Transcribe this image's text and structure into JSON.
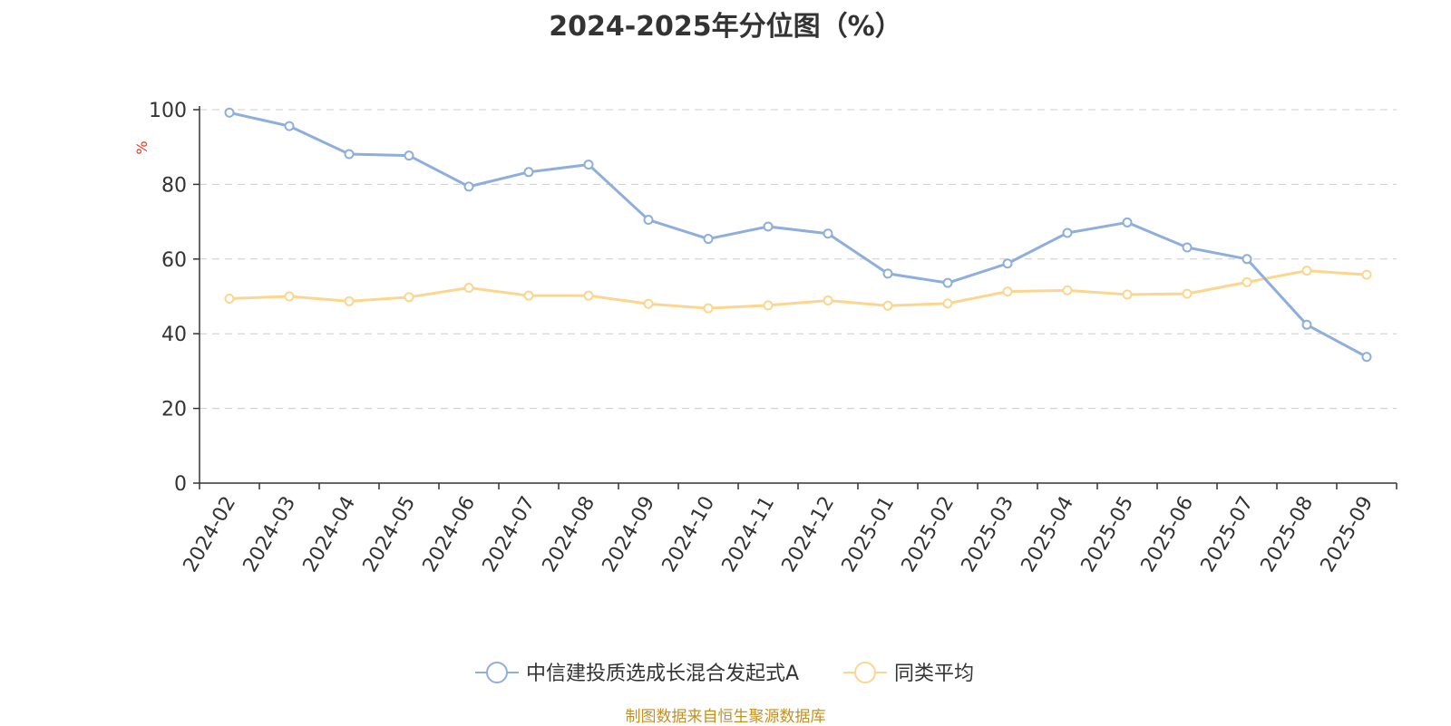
{
  "title": "2024-2025年分位图（%）",
  "source": "制图数据来自恒生聚源数据库",
  "colors": {
    "series1": "#8eaedb",
    "series2": "#fcd68e",
    "unit": "#e8341c",
    "source": "#c6901f"
  },
  "chart_data": {
    "type": "line",
    "title": "2024-2025年分位图（%）",
    "xlabel": "",
    "ylabel": "%",
    "ylim": [
      0,
      100
    ],
    "yticks": [
      0,
      20,
      40,
      60,
      80,
      100
    ],
    "grid": true,
    "legend_position": "bottom",
    "categories": [
      "2024-02",
      "2024-03",
      "2024-04",
      "2024-05",
      "2024-06",
      "2024-07",
      "2024-08",
      "2024-09",
      "2024-10",
      "2024-11",
      "2024-12",
      "2025-01",
      "2025-02",
      "2025-03",
      "2025-04",
      "2025-05",
      "2025-06",
      "2025-07",
      "2025-08",
      "2025-09"
    ],
    "series": [
      {
        "name": "中信建投质选成长混合发起式A",
        "values": [
          99.2,
          95.6,
          88.1,
          87.7,
          79.4,
          83.3,
          85.3,
          70.5,
          65.4,
          68.7,
          66.8,
          56.1,
          53.6,
          58.8,
          67.0,
          69.8,
          63.1,
          60.0,
          42.4,
          33.8
        ]
      },
      {
        "name": "同类平均",
        "values": [
          49.4,
          50.0,
          48.7,
          49.8,
          52.3,
          50.2,
          50.2,
          48.0,
          46.8,
          47.6,
          48.9,
          47.5,
          48.1,
          51.3,
          51.6,
          50.5,
          50.7,
          53.8,
          56.9,
          55.8
        ]
      }
    ]
  }
}
